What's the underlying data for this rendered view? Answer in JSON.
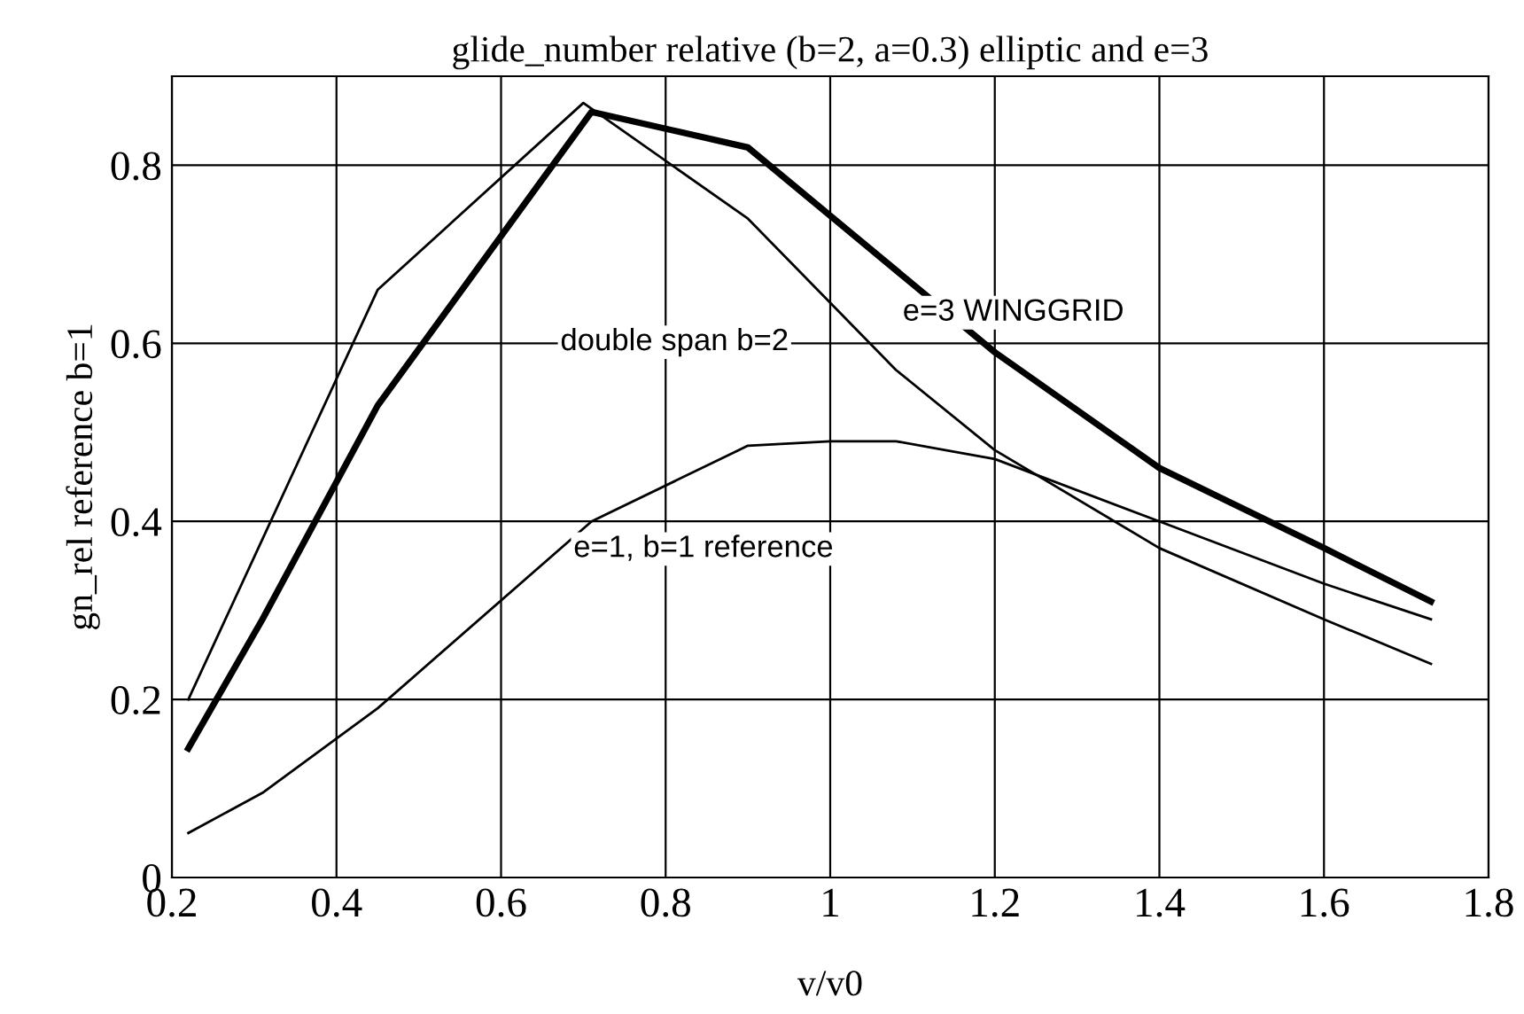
{
  "chart_data": {
    "type": "line",
    "title": "glide_number relative (b=2, a=0.3) elliptic and e=3",
    "xlabel": "v/v0",
    "ylabel": "gn_rel reference b=1",
    "xlim": [
      0.2,
      1.8
    ],
    "xticks": [
      0.2,
      0.4,
      0.6,
      0.8,
      1,
      1.2,
      1.4,
      1.6,
      1.8
    ],
    "ylim": [
      0,
      0.9
    ],
    "yticks": [
      0,
      0.2,
      0.4,
      0.6,
      0.8
    ],
    "grid": true,
    "marker": "none",
    "line_style": "solid",
    "series": [
      {
        "name": "double span b=2",
        "color": "#000000",
        "x": [
          0.22,
          0.31,
          0.45,
          0.7,
          0.9,
          1.08,
          1.2,
          1.4,
          1.6,
          1.73
        ],
        "values": [
          0.2,
          0.38,
          0.66,
          0.87,
          0.74,
          0.57,
          0.48,
          0.37,
          0.29,
          0.24
        ]
      },
      {
        "name": "e=3 WINGGRID",
        "color": "#000000",
        "x": [
          0.22,
          0.31,
          0.45,
          0.71,
          0.9,
          1.2,
          1.4,
          1.6,
          1.73
        ],
        "values": [
          0.145,
          0.29,
          0.53,
          0.86,
          0.82,
          0.59,
          0.46,
          0.37,
          0.31
        ]
      },
      {
        "name": "e=1, b=1 reference",
        "color": "#000000",
        "x": [
          0.22,
          0.31,
          0.45,
          0.71,
          0.9,
          1.0,
          1.08,
          1.2,
          1.4,
          1.6,
          1.73
        ],
        "values": [
          0.05,
          0.095,
          0.19,
          0.4,
          0.485,
          0.49,
          0.49,
          0.47,
          0.4,
          0.33,
          0.29
        ]
      }
    ]
  }
}
